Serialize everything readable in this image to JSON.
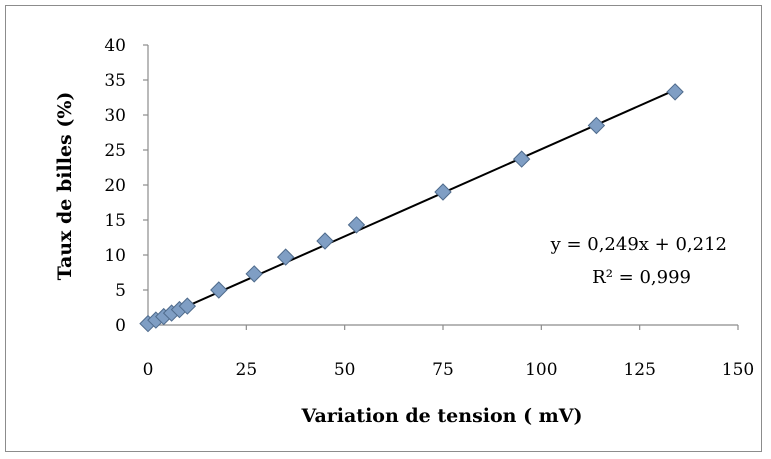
{
  "chart_data": {
    "type": "scatter",
    "title": "",
    "xlabel": "Variation de tension ( mV)",
    "ylabel": "Taux de billes (%)",
    "xlim": [
      0,
      150
    ],
    "ylim": [
      0,
      40
    ],
    "x_ticks": [
      "0",
      "25",
      "50",
      "75",
      "100",
      "125",
      "150"
    ],
    "y_ticks": [
      "0",
      "5",
      "10",
      "15",
      "20",
      "25",
      "30",
      "35",
      "40"
    ],
    "grid": false,
    "legend": "none",
    "series": [
      {
        "x": [
          0,
          2,
          4,
          6,
          8,
          10,
          18,
          27,
          35,
          45,
          53,
          75,
          95,
          114,
          134
        ],
        "y": [
          0.2,
          0.7,
          1.2,
          1.7,
          2.2,
          2.7,
          5,
          7.3,
          9.7,
          12,
          14.3,
          19,
          23.7,
          28.5,
          33.3
        ],
        "marker": "diamond",
        "color": "#7f9ec4",
        "edge_color": "#4f6b8c"
      }
    ],
    "trendline": {
      "type": "linear",
      "slope": 0.249,
      "intercept": 0.212,
      "x_range": [
        0,
        134
      ],
      "color": "#000000"
    },
    "annotations": [
      "y = 0,249x + 0,212",
      "R² = 0,999"
    ]
  }
}
